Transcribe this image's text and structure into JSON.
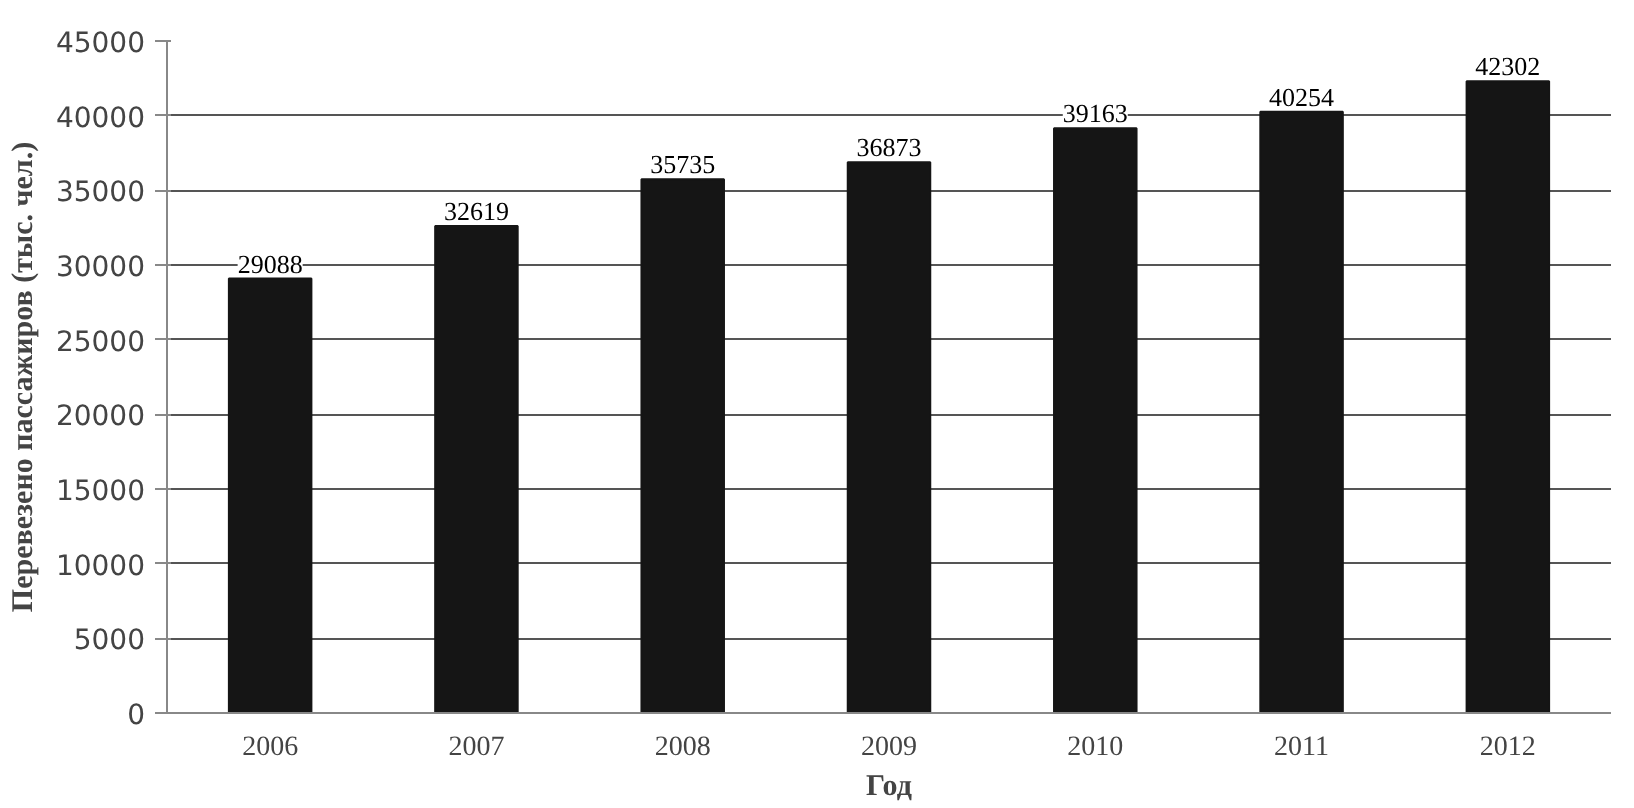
{
  "chart_data": {
    "type": "bar",
    "xlabel": "Год",
    "ylabel": "Перевезено пассажиров (тыс. чел.)",
    "categories": [
      "2006",
      "2007",
      "2008",
      "2009",
      "2010",
      "2011",
      "2012"
    ],
    "values": [
      29088,
      32619,
      35735,
      36873,
      39163,
      40254,
      42302
    ],
    "color": "#151515",
    "data_labels": true,
    "grid": "y",
    "ylim": [
      0,
      45000
    ],
    "yticks": [
      0,
      5000,
      10000,
      15000,
      20000,
      25000,
      30000,
      35000,
      40000,
      45000
    ]
  }
}
